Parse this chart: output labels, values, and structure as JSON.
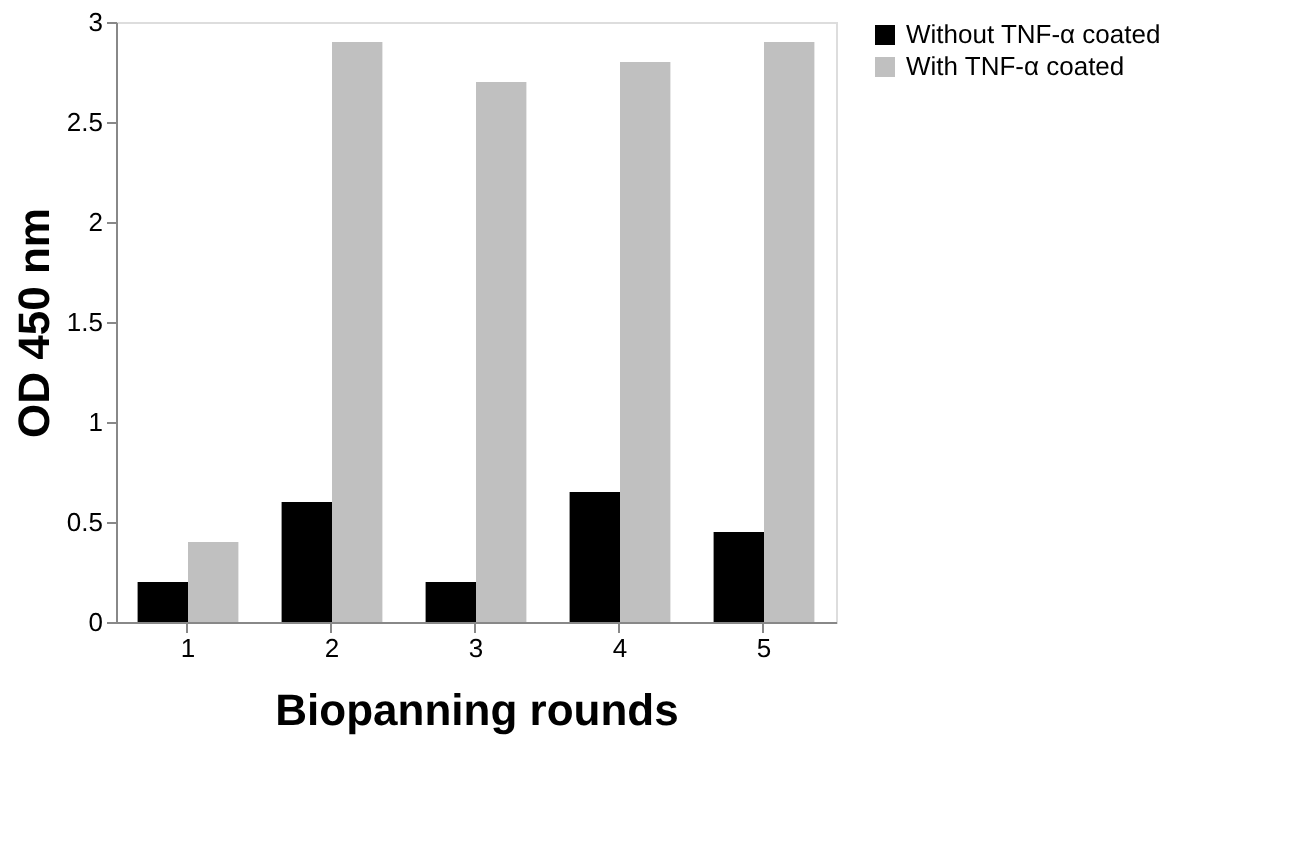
{
  "chart_data": {
    "type": "bar",
    "xlabel": "Biopanning rounds",
    "ylabel": "OD 450 nm",
    "categories": [
      "1",
      "2",
      "3",
      "4",
      "5"
    ],
    "series": [
      {
        "name": "Without TNF-α coated",
        "color": "#000000",
        "values": [
          0.2,
          0.6,
          0.2,
          0.65,
          0.45
        ]
      },
      {
        "name": "With TNF-α coated",
        "color": "#c0c0c0",
        "values": [
          0.4,
          2.9,
          2.7,
          2.8,
          2.9
        ]
      }
    ],
    "ylim": [
      0,
      3
    ],
    "yticks": [
      0,
      0.5,
      1,
      1.5,
      2,
      2.5,
      3
    ],
    "grid": false,
    "legend": "right"
  }
}
